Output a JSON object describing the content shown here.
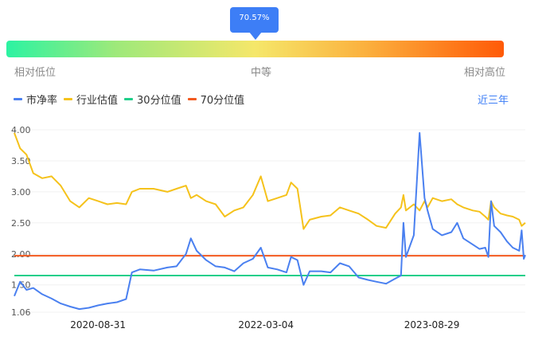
{
  "gauge": {
    "value_text": "70.57%",
    "percentile": 0.7057,
    "low_label": "相对低位",
    "mid_label": "中等",
    "high_label": "相对高位",
    "gradient_colors": [
      "#2cf3a2",
      "#f5e76a",
      "#ff5a07"
    ]
  },
  "legend": {
    "items": [
      {
        "label": "市净率",
        "color": "#4a80f0"
      },
      {
        "label": "行业估值",
        "color": "#f5c21b"
      },
      {
        "label": "30分位值",
        "color": "#1fcf8a"
      },
      {
        "label": "70分位值",
        "color": "#f25a1f"
      }
    ]
  },
  "range_label": "近三年",
  "chart_data": {
    "type": "line",
    "ylim": [
      1.06,
      4.0
    ],
    "y_ticks": [
      "4.00",
      "3.50",
      "3.00",
      "2.50",
      "2.00",
      "1.50",
      "1.06"
    ],
    "y_tick_values": [
      4.0,
      3.5,
      3.0,
      2.5,
      2.0,
      1.5,
      1.06
    ],
    "x_tick_labels": [
      "2020-08-31",
      "2022-03-04",
      "2023-08-29"
    ],
    "x_range": [
      "2019-12-01",
      "2024-06-30"
    ],
    "grid": true,
    "series": [
      {
        "name": "市净率",
        "color": "#4a80f0",
        "points": [
          [
            "2019-12-01",
            1.32
          ],
          [
            "2019-12-20",
            1.55
          ],
          [
            "2020-01-10",
            1.42
          ],
          [
            "2020-02-01",
            1.45
          ],
          [
            "2020-03-01",
            1.35
          ],
          [
            "2020-04-01",
            1.28
          ],
          [
            "2020-05-01",
            1.2
          ],
          [
            "2020-06-01",
            1.15
          ],
          [
            "2020-07-01",
            1.11
          ],
          [
            "2020-08-01",
            1.13
          ],
          [
            "2020-09-01",
            1.17
          ],
          [
            "2020-10-01",
            1.2
          ],
          [
            "2020-11-01",
            1.22
          ],
          [
            "2020-12-01",
            1.27
          ],
          [
            "2020-12-20",
            1.7
          ],
          [
            "2021-01-15",
            1.75
          ],
          [
            "2021-03-01",
            1.73
          ],
          [
            "2021-04-15",
            1.78
          ],
          [
            "2021-05-15",
            1.8
          ],
          [
            "2021-06-15",
            2.0
          ],
          [
            "2021-07-01",
            2.25
          ],
          [
            "2021-07-20",
            2.05
          ],
          [
            "2021-08-20",
            1.9
          ],
          [
            "2021-09-20",
            1.8
          ],
          [
            "2021-10-20",
            1.78
          ],
          [
            "2021-11-20",
            1.72
          ],
          [
            "2021-12-20",
            1.85
          ],
          [
            "2022-01-20",
            1.92
          ],
          [
            "2022-02-15",
            2.1
          ],
          [
            "2022-03-10",
            1.78
          ],
          [
            "2022-04-10",
            1.75
          ],
          [
            "2022-05-10",
            1.7
          ],
          [
            "2022-05-25",
            1.95
          ],
          [
            "2022-06-15",
            1.9
          ],
          [
            "2022-07-05",
            1.5
          ],
          [
            "2022-07-25",
            1.72
          ],
          [
            "2022-09-01",
            1.72
          ],
          [
            "2022-10-01",
            1.7
          ],
          [
            "2022-11-01",
            1.85
          ],
          [
            "2022-12-01",
            1.8
          ],
          [
            "2023-01-01",
            1.62
          ],
          [
            "2023-02-01",
            1.58
          ],
          [
            "2023-03-01",
            1.55
          ],
          [
            "2023-04-01",
            1.52
          ],
          [
            "2023-05-01",
            1.6
          ],
          [
            "2023-05-20",
            1.65
          ],
          [
            "2023-05-28",
            2.5
          ],
          [
            "2023-06-05",
            1.95
          ],
          [
            "2023-07-01",
            2.3
          ],
          [
            "2023-07-20",
            3.95
          ],
          [
            "2023-08-05",
            2.9
          ],
          [
            "2023-08-15",
            2.7
          ],
          [
            "2023-09-01",
            2.4
          ],
          [
            "2023-10-01",
            2.3
          ],
          [
            "2023-11-01",
            2.35
          ],
          [
            "2023-11-20",
            2.5
          ],
          [
            "2023-12-10",
            2.25
          ],
          [
            "2024-01-10",
            2.15
          ],
          [
            "2024-02-01",
            2.08
          ],
          [
            "2024-02-20",
            2.1
          ],
          [
            "2024-03-01",
            1.95
          ],
          [
            "2024-03-10",
            2.85
          ],
          [
            "2024-03-20",
            2.45
          ],
          [
            "2024-04-10",
            2.35
          ],
          [
            "2024-05-01",
            2.2
          ],
          [
            "2024-05-20",
            2.1
          ],
          [
            "2024-06-10",
            2.05
          ],
          [
            "2024-06-18",
            2.38
          ],
          [
            "2024-06-25",
            1.92
          ],
          [
            "2024-06-30",
            1.98
          ]
        ]
      },
      {
        "name": "行业估值",
        "color": "#f5c21b",
        "points": [
          [
            "2019-12-01",
            3.95
          ],
          [
            "2019-12-20",
            3.7
          ],
          [
            "2020-01-10",
            3.6
          ],
          [
            "2020-02-01",
            3.3
          ],
          [
            "2020-03-01",
            3.22
          ],
          [
            "2020-04-01",
            3.25
          ],
          [
            "2020-05-01",
            3.1
          ],
          [
            "2020-06-01",
            2.85
          ],
          [
            "2020-07-01",
            2.75
          ],
          [
            "2020-08-01",
            2.9
          ],
          [
            "2020-09-01",
            2.85
          ],
          [
            "2020-10-01",
            2.8
          ],
          [
            "2020-11-01",
            2.82
          ],
          [
            "2020-12-01",
            2.8
          ],
          [
            "2020-12-20",
            3.0
          ],
          [
            "2021-01-15",
            3.05
          ],
          [
            "2021-03-01",
            3.05
          ],
          [
            "2021-04-15",
            3.0
          ],
          [
            "2021-05-15",
            3.05
          ],
          [
            "2021-06-15",
            3.1
          ],
          [
            "2021-07-01",
            2.9
          ],
          [
            "2021-07-20",
            2.95
          ],
          [
            "2021-08-20",
            2.85
          ],
          [
            "2021-09-20",
            2.8
          ],
          [
            "2021-10-20",
            2.6
          ],
          [
            "2021-11-20",
            2.7
          ],
          [
            "2021-12-20",
            2.75
          ],
          [
            "2022-01-20",
            2.95
          ],
          [
            "2022-02-15",
            3.25
          ],
          [
            "2022-03-10",
            2.85
          ],
          [
            "2022-04-10",
            2.9
          ],
          [
            "2022-05-10",
            2.95
          ],
          [
            "2022-05-25",
            3.15
          ],
          [
            "2022-06-15",
            3.05
          ],
          [
            "2022-07-05",
            2.4
          ],
          [
            "2022-07-25",
            2.55
          ],
          [
            "2022-09-01",
            2.6
          ],
          [
            "2022-10-01",
            2.62
          ],
          [
            "2022-11-01",
            2.75
          ],
          [
            "2022-12-01",
            2.7
          ],
          [
            "2023-01-01",
            2.65
          ],
          [
            "2023-02-01",
            2.55
          ],
          [
            "2023-03-01",
            2.45
          ],
          [
            "2023-04-01",
            2.42
          ],
          [
            "2023-05-01",
            2.65
          ],
          [
            "2023-05-20",
            2.75
          ],
          [
            "2023-05-28",
            2.95
          ],
          [
            "2023-06-05",
            2.7
          ],
          [
            "2023-07-01",
            2.8
          ],
          [
            "2023-07-20",
            2.7
          ],
          [
            "2023-08-05",
            2.85
          ],
          [
            "2023-08-15",
            2.75
          ],
          [
            "2023-09-01",
            2.9
          ],
          [
            "2023-10-01",
            2.85
          ],
          [
            "2023-11-01",
            2.88
          ],
          [
            "2023-11-20",
            2.8
          ],
          [
            "2023-12-10",
            2.75
          ],
          [
            "2024-01-10",
            2.7
          ],
          [
            "2024-02-01",
            2.68
          ],
          [
            "2024-02-20",
            2.6
          ],
          [
            "2024-03-01",
            2.55
          ],
          [
            "2024-03-10",
            2.85
          ],
          [
            "2024-03-20",
            2.75
          ],
          [
            "2024-04-10",
            2.65
          ],
          [
            "2024-05-01",
            2.62
          ],
          [
            "2024-05-20",
            2.6
          ],
          [
            "2024-06-10",
            2.55
          ],
          [
            "2024-06-18",
            2.45
          ],
          [
            "2024-06-25",
            2.48
          ],
          [
            "2024-06-30",
            2.5
          ]
        ]
      }
    ],
    "reference_lines": [
      {
        "name": "30分位值",
        "value": 1.65,
        "color": "#1fcf8a"
      },
      {
        "name": "70分位值",
        "value": 1.97,
        "color": "#f25a1f"
      }
    ]
  }
}
